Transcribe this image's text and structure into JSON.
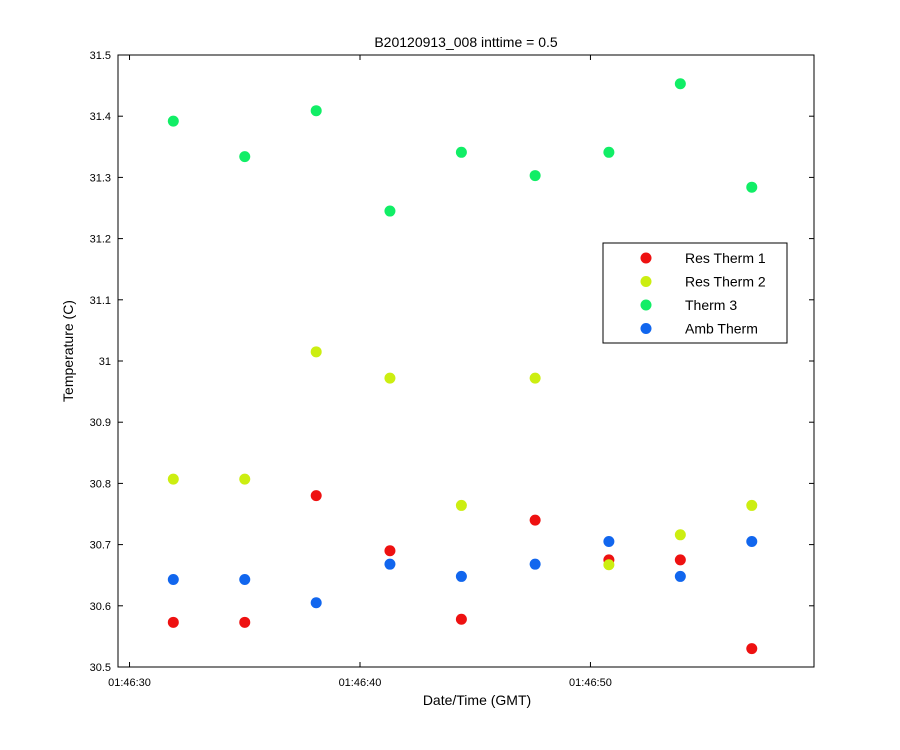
{
  "chart_data": {
    "type": "scatter",
    "title": "B20120913_008 inttime = 0.5",
    "xlabel": "Date/Time (GMT)",
    "ylabel": "Temperature (C)",
    "x_axis_type": "time",
    "xlim": [
      "01:46:29.5",
      "01:46:59.7"
    ],
    "ylim": [
      30.5,
      31.5
    ],
    "x_ticks": [
      "01:46:30",
      "01:46:40",
      "01:46:50"
    ],
    "y_ticks": [
      "30.5",
      "30.6",
      "30.7",
      "30.8",
      "30.9",
      "31",
      "31.1",
      "31.2",
      "31.3",
      "31.4",
      "31.5"
    ],
    "grid": false,
    "legend_position": "right",
    "x": [
      "01:46:31.9",
      "01:46:35.0",
      "01:46:38.1",
      "01:46:41.3",
      "01:46:44.4",
      "01:46:47.6",
      "01:46:50.8",
      "01:46:53.9",
      "01:46:57.0"
    ],
    "series": [
      {
        "name": "Res Therm 1",
        "color": "#ee1111",
        "values": [
          30.573,
          30.573,
          30.78,
          30.69,
          30.578,
          30.74,
          30.675,
          30.675,
          30.53
        ]
      },
      {
        "name": "Res Therm 2",
        "color": "#ccee11",
        "values": [
          30.807,
          30.807,
          31.015,
          30.972,
          30.764,
          30.972,
          30.667,
          30.716,
          30.764
        ]
      },
      {
        "name": "Therm 3",
        "color": "#11ee66",
        "values": [
          31.392,
          31.334,
          31.409,
          31.245,
          31.341,
          31.303,
          31.341,
          31.453,
          31.284
        ]
      },
      {
        "name": "Amb Therm",
        "color": "#1166ee",
        "values": [
          30.643,
          30.643,
          30.605,
          30.668,
          30.648,
          30.668,
          30.705,
          30.648,
          30.705
        ]
      }
    ]
  }
}
